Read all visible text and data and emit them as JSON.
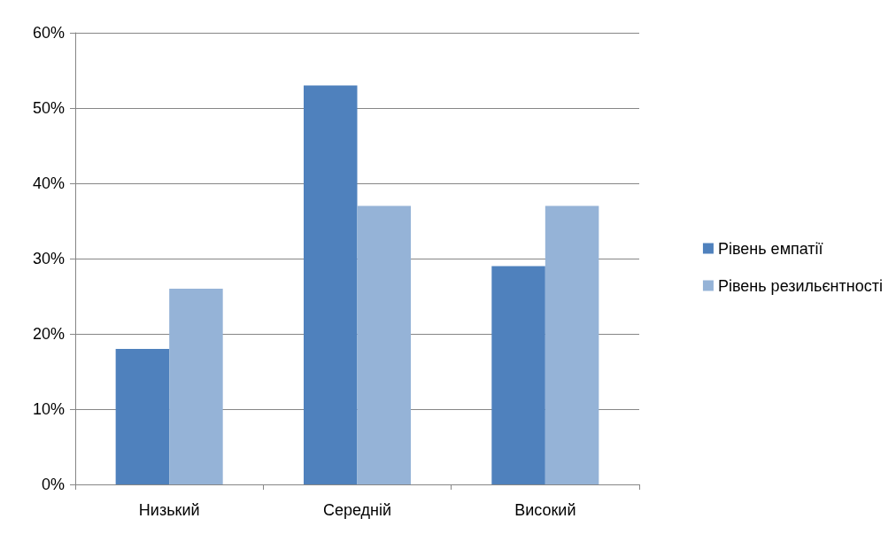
{
  "chart_data": {
    "type": "bar",
    "categories": [
      "Низький",
      "Середній",
      "Високий"
    ],
    "series": [
      {
        "name": "Рівень емпатії",
        "color": "#4f81bd",
        "values": [
          18,
          53,
          29
        ]
      },
      {
        "name": "Рівень резильєнтності",
        "color": "#95b3d7",
        "values": [
          26,
          37,
          37
        ]
      }
    ],
    "ylim": [
      0,
      60
    ],
    "yticks": [
      {
        "value": 0,
        "label": "0%"
      },
      {
        "value": 10,
        "label": "10%"
      },
      {
        "value": 20,
        "label": "20%"
      },
      {
        "value": 30,
        "label": "30%"
      },
      {
        "value": 40,
        "label": "40%"
      },
      {
        "value": 50,
        "label": "50%"
      },
      {
        "value": 60,
        "label": "60%"
      }
    ],
    "grid": "y",
    "legend": "right"
  }
}
